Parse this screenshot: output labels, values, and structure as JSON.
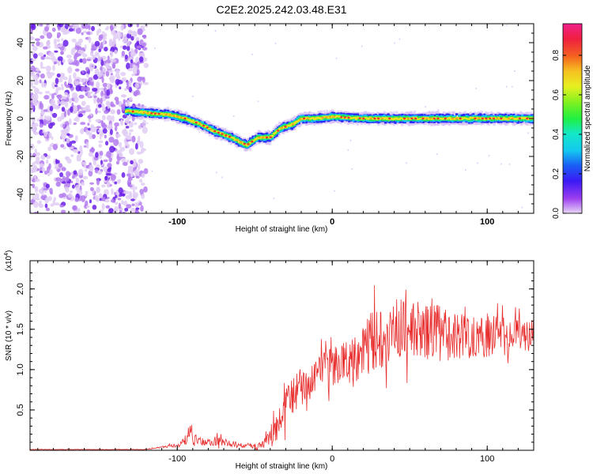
{
  "title": "C2E2.2025.242.03.48.E31",
  "chart_data": [
    {
      "type": "heatmap",
      "xlabel": "Height of straight line (km)",
      "ylabel": "Frequency (Hz)",
      "xlim": [
        -195,
        130
      ],
      "ylim": [
        -50,
        50
      ],
      "xticks": [
        -100,
        0,
        100
      ],
      "yticks": [
        -40,
        -20,
        0,
        20,
        40
      ],
      "colorbar": {
        "label": "Normalized spectral amplitude",
        "range": [
          0,
          0.96
        ],
        "ticks": [
          "0.0",
          "0.2",
          "0.4",
          "0.6",
          "0.8"
        ]
      },
      "noise_region_x": [
        -195,
        -120
      ],
      "signal_track": {
        "x": [
          -133,
          -120,
          -105,
          -95,
          -85,
          -75,
          -65,
          -55,
          -48,
          -40,
          -33,
          -25,
          -20,
          -10,
          0,
          20,
          60,
          100,
          130
        ],
        "freq": [
          4,
          3,
          2,
          0,
          -3,
          -7,
          -10,
          -14,
          -10,
          -10,
          -5,
          -3,
          0,
          0,
          1,
          0,
          0,
          0,
          0
        ]
      }
    },
    {
      "type": "line",
      "xlabel": "Height of straight line (km)",
      "ylabel": "SNR (10 * v/v)",
      "exponent_label": "(x10",
      "exponent": "4",
      "exponent_close": ")",
      "xlim": [
        -195,
        130
      ],
      "ylim": [
        0,
        2.35
      ],
      "yticks": [
        "0.5",
        "1.0",
        "1.5",
        "2.0"
      ],
      "ytick_values": [
        0.5,
        1.0,
        1.5,
        2.0
      ],
      "xticks": [
        -100,
        0,
        100
      ],
      "line_color": "#e83030",
      "series": [
        {
          "x": [
            -195,
            -120,
            -110,
            -100,
            -95,
            -92,
            -90,
            -85,
            -80,
            -75,
            -70,
            -65,
            -60,
            -55,
            -50,
            -45,
            -40,
            -35,
            -30,
            -25,
            -20,
            -15,
            -10,
            -5,
            0,
            5,
            10,
            15,
            20,
            25,
            30,
            35,
            40,
            45,
            50,
            55,
            60,
            65,
            70,
            75,
            80,
            85,
            90,
            95,
            100,
            105,
            110,
            115,
            120,
            125,
            130
          ],
          "y": [
            0.01,
            0.01,
            0.04,
            0.06,
            0.12,
            0.22,
            0.15,
            0.1,
            0.1,
            0.12,
            0.1,
            0.08,
            0.06,
            0.06,
            0.05,
            0.07,
            0.15,
            0.3,
            0.55,
            0.7,
            0.8,
            0.85,
            0.9,
            1.0,
            1.05,
            1.08,
            1.1,
            1.15,
            1.25,
            1.35,
            1.4,
            1.45,
            1.5,
            1.5,
            1.45,
            1.5,
            1.45,
            1.5,
            1.45,
            1.4,
            1.45,
            1.4,
            1.45,
            1.4,
            1.4,
            1.45,
            1.4,
            1.4,
            1.45,
            1.42,
            1.45
          ],
          "noise": [
            0.003,
            0.003,
            0.01,
            0.03,
            0.06,
            0.1,
            0.08,
            0.06,
            0.05,
            0.06,
            0.05,
            0.04,
            0.03,
            0.03,
            0.03,
            0.05,
            0.12,
            0.2,
            0.25,
            0.25,
            0.22,
            0.22,
            0.22,
            0.25,
            0.25,
            0.25,
            0.28,
            0.3,
            0.35,
            0.4,
            0.4,
            0.4,
            0.4,
            0.4,
            0.35,
            0.35,
            0.35,
            0.35,
            0.35,
            0.3,
            0.3,
            0.3,
            0.3,
            0.28,
            0.28,
            0.25,
            0.25,
            0.2,
            0.2,
            0.2,
            0.2
          ]
        }
      ]
    }
  ]
}
